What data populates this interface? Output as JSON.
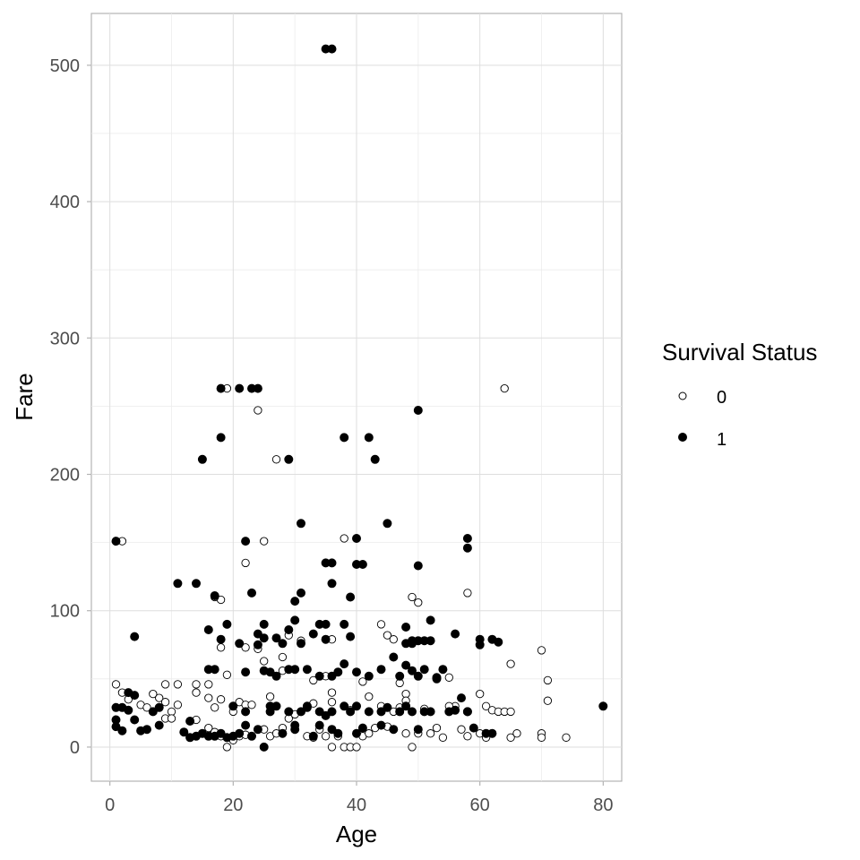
{
  "chart_data": {
    "type": "scatter",
    "xlabel": "Age",
    "ylabel": "Fare",
    "xlim": [
      -3,
      83
    ],
    "ylim": [
      -25,
      538
    ],
    "x_ticks": [
      0,
      20,
      40,
      60,
      80
    ],
    "y_ticks": [
      0,
      100,
      200,
      300,
      400,
      500
    ],
    "x_tick_labels": [
      "0",
      "20",
      "40",
      "60",
      "80"
    ],
    "y_tick_labels": [
      "0",
      "100",
      "200",
      "300",
      "400",
      "500"
    ],
    "grid": true,
    "legend": {
      "title": "Survival Status",
      "placement": "right",
      "entries": [
        {
          "label": "0",
          "style": "open"
        },
        {
          "label": "1",
          "style": "filled"
        }
      ]
    },
    "series": [
      {
        "name": "0",
        "style": "open",
        "points": [
          [
            19,
            263
          ],
          [
            24,
            263
          ],
          [
            24,
            247
          ],
          [
            64,
            263
          ],
          [
            27,
            211
          ],
          [
            2,
            151
          ],
          [
            25,
            151
          ],
          [
            38,
            153
          ],
          [
            22,
            135
          ],
          [
            18,
            108
          ],
          [
            17,
            110
          ],
          [
            49,
            110
          ],
          [
            50,
            106
          ],
          [
            58,
            113
          ],
          [
            29,
            82
          ],
          [
            44,
            90
          ],
          [
            45,
            82
          ],
          [
            46,
            79
          ],
          [
            36,
            79
          ],
          [
            31,
            78
          ],
          [
            24,
            72
          ],
          [
            22,
            73
          ],
          [
            18,
            73
          ],
          [
            28,
            66
          ],
          [
            25,
            63
          ],
          [
            65,
            61
          ],
          [
            70,
            71
          ],
          [
            71,
            49
          ],
          [
            71,
            34
          ],
          [
            47,
            47
          ],
          [
            41,
            48
          ],
          [
            36,
            40
          ],
          [
            39,
            27
          ],
          [
            42,
            37
          ],
          [
            48,
            39
          ],
          [
            48,
            34
          ],
          [
            55,
            51
          ],
          [
            56,
            30
          ],
          [
            60,
            39
          ],
          [
            61,
            30
          ],
          [
            62,
            27
          ],
          [
            63,
            26
          ],
          [
            64,
            26
          ],
          [
            65,
            26
          ],
          [
            1,
            46
          ],
          [
            2,
            40
          ],
          [
            3,
            35
          ],
          [
            8,
            36
          ],
          [
            9,
            33
          ],
          [
            9,
            46
          ],
          [
            11,
            46
          ],
          [
            14,
            46
          ],
          [
            16,
            46
          ],
          [
            14,
            40
          ],
          [
            16,
            36
          ],
          [
            18,
            35
          ],
          [
            19,
            53
          ],
          [
            21,
            33
          ],
          [
            17,
            29
          ],
          [
            11,
            31
          ],
          [
            10,
            26
          ],
          [
            7,
            39
          ],
          [
            5,
            31
          ],
          [
            6,
            29
          ],
          [
            5,
            12
          ],
          [
            9,
            21
          ],
          [
            10,
            21
          ],
          [
            14,
            20
          ],
          [
            16,
            14
          ],
          [
            17,
            11
          ],
          [
            18,
            8
          ],
          [
            19,
            0
          ],
          [
            20,
            5
          ],
          [
            21,
            8
          ],
          [
            22,
            9
          ],
          [
            23,
            8
          ],
          [
            24,
            13
          ],
          [
            25,
            13
          ],
          [
            26,
            8
          ],
          [
            27,
            10
          ],
          [
            28,
            14
          ],
          [
            29,
            21
          ],
          [
            30,
            24
          ],
          [
            31,
            26
          ],
          [
            32,
            8
          ],
          [
            33,
            7
          ],
          [
            34,
            13
          ],
          [
            35,
            8
          ],
          [
            36,
            0
          ],
          [
            37,
            8
          ],
          [
            38,
            0
          ],
          [
            39,
            0
          ],
          [
            40,
            0
          ],
          [
            41,
            8
          ],
          [
            42,
            10
          ],
          [
            43,
            14
          ],
          [
            44,
            30
          ],
          [
            45,
            15
          ],
          [
            46,
            26
          ],
          [
            47,
            29
          ],
          [
            48,
            10
          ],
          [
            49,
            0
          ],
          [
            50,
            10
          ],
          [
            51,
            28
          ],
          [
            52,
            10
          ],
          [
            53,
            14
          ],
          [
            54,
            7
          ],
          [
            55,
            30
          ],
          [
            57,
            13
          ],
          [
            58,
            8
          ],
          [
            59,
            14
          ],
          [
            60,
            10
          ],
          [
            61,
            7
          ],
          [
            62,
            10
          ],
          [
            65,
            7
          ],
          [
            66,
            10
          ],
          [
            70,
            10
          ],
          [
            70,
            7
          ],
          [
            74,
            7
          ],
          [
            28,
            56
          ],
          [
            33,
            49
          ],
          [
            35,
            52
          ],
          [
            26,
            37
          ],
          [
            22,
            31
          ],
          [
            20,
            26
          ],
          [
            23,
            31
          ],
          [
            33,
            32
          ],
          [
            36,
            33
          ]
        ]
      },
      {
        "name": "1",
        "style": "filled",
        "points": [
          [
            35,
            512
          ],
          [
            36,
            512
          ],
          [
            18,
            263
          ],
          [
            21,
            263
          ],
          [
            23,
            263
          ],
          [
            24,
            263
          ],
          [
            50,
            247
          ],
          [
            18,
            227
          ],
          [
            38,
            227
          ],
          [
            42,
            227
          ],
          [
            15,
            211
          ],
          [
            29,
            211
          ],
          [
            43,
            211
          ],
          [
            1,
            151
          ],
          [
            22,
            151
          ],
          [
            31,
            164
          ],
          [
            45,
            164
          ],
          [
            58,
            153
          ],
          [
            58,
            146
          ],
          [
            40,
            153
          ],
          [
            35,
            135
          ],
          [
            36,
            135
          ],
          [
            40,
            134
          ],
          [
            41,
            134
          ],
          [
            50,
            133
          ],
          [
            11,
            120
          ],
          [
            14,
            120
          ],
          [
            36,
            120
          ],
          [
            17,
            111
          ],
          [
            23,
            113
          ],
          [
            31,
            113
          ],
          [
            30,
            107
          ],
          [
            39,
            110
          ],
          [
            4,
            81
          ],
          [
            16,
            86
          ],
          [
            19,
            90
          ],
          [
            25,
            90
          ],
          [
            30,
            93
          ],
          [
            34,
            90
          ],
          [
            35,
            90
          ],
          [
            38,
            90
          ],
          [
            52,
            93
          ],
          [
            48,
            88
          ],
          [
            29,
            86
          ],
          [
            24,
            83
          ],
          [
            24,
            75
          ],
          [
            31,
            76
          ],
          [
            33,
            83
          ],
          [
            35,
            79
          ],
          [
            39,
            81
          ],
          [
            49,
            78
          ],
          [
            50,
            78
          ],
          [
            51,
            78
          ],
          [
            52,
            78
          ],
          [
            56,
            83
          ],
          [
            60,
            79
          ],
          [
            62,
            79
          ],
          [
            63,
            77
          ],
          [
            60,
            75
          ],
          [
            18,
            79
          ],
          [
            21,
            76
          ],
          [
            25,
            80
          ],
          [
            27,
            80
          ],
          [
            28,
            76
          ],
          [
            48,
            76
          ],
          [
            49,
            76
          ],
          [
            16,
            57
          ],
          [
            17,
            57
          ],
          [
            22,
            55
          ],
          [
            25,
            56
          ],
          [
            26,
            55
          ],
          [
            27,
            52
          ],
          [
            29,
            57
          ],
          [
            30,
            57
          ],
          [
            32,
            57
          ],
          [
            34,
            52
          ],
          [
            36,
            52
          ],
          [
            37,
            55
          ],
          [
            38,
            61
          ],
          [
            40,
            55
          ],
          [
            42,
            52
          ],
          [
            44,
            57
          ],
          [
            46,
            66
          ],
          [
            47,
            52
          ],
          [
            48,
            60
          ],
          [
            49,
            56
          ],
          [
            50,
            52
          ],
          [
            51,
            57
          ],
          [
            53,
            51
          ],
          [
            54,
            57
          ],
          [
            56,
            27
          ],
          [
            58,
            26
          ],
          [
            1,
            29
          ],
          [
            1,
            20
          ],
          [
            1,
            15
          ],
          [
            2,
            12
          ],
          [
            2,
            29
          ],
          [
            3,
            40
          ],
          [
            3,
            27
          ],
          [
            4,
            38
          ],
          [
            4,
            20
          ],
          [
            5,
            12
          ],
          [
            6,
            13
          ],
          [
            7,
            26
          ],
          [
            8,
            29
          ],
          [
            8,
            16
          ],
          [
            13,
            19
          ],
          [
            13,
            7
          ],
          [
            14,
            8
          ],
          [
            15,
            10
          ],
          [
            16,
            8
          ],
          [
            17,
            8
          ],
          [
            18,
            10
          ],
          [
            19,
            7
          ],
          [
            20,
            8
          ],
          [
            21,
            10
          ],
          [
            22,
            26
          ],
          [
            23,
            8
          ],
          [
            24,
            13
          ],
          [
            25,
            0
          ],
          [
            26,
            26
          ],
          [
            27,
            30
          ],
          [
            28,
            10
          ],
          [
            29,
            26
          ],
          [
            30,
            13
          ],
          [
            31,
            26
          ],
          [
            32,
            29
          ],
          [
            33,
            8
          ],
          [
            34,
            26
          ],
          [
            35,
            23
          ],
          [
            36,
            13
          ],
          [
            37,
            10
          ],
          [
            38,
            30
          ],
          [
            39,
            26
          ],
          [
            40,
            10
          ],
          [
            41,
            14
          ],
          [
            42,
            26
          ],
          [
            44,
            16
          ],
          [
            45,
            29
          ],
          [
            46,
            13
          ],
          [
            47,
            26
          ],
          [
            48,
            30
          ],
          [
            49,
            26
          ],
          [
            50,
            13
          ],
          [
            51,
            26
          ],
          [
            52,
            26
          ],
          [
            53,
            50
          ],
          [
            55,
            26
          ],
          [
            57,
            36
          ],
          [
            58,
            26
          ],
          [
            59,
            14
          ],
          [
            61,
            10
          ],
          [
            62,
            10
          ],
          [
            80,
            30
          ],
          [
            32,
            30
          ],
          [
            26,
            30
          ],
          [
            30,
            16
          ],
          [
            34,
            16
          ],
          [
            20,
            30
          ],
          [
            12,
            11
          ],
          [
            22,
            16
          ],
          [
            36,
            26
          ],
          [
            40,
            30
          ],
          [
            44,
            26
          ]
        ]
      }
    ]
  }
}
